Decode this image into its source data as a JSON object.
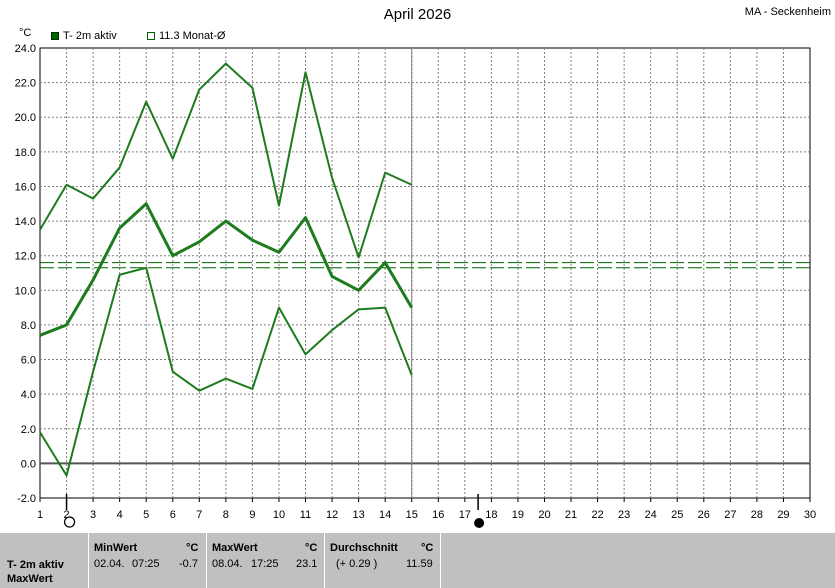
{
  "header": {
    "title": "April 2026",
    "station": "MA - Seckenheim",
    "unit": "°C"
  },
  "legend": [
    {
      "label": "T- 2m aktiv",
      "color": "#006400"
    },
    {
      "label": "11.3 Monat-Ø",
      "color": "#006400"
    }
  ],
  "chart_data": {
    "type": "line",
    "title": "April 2026",
    "ylabel": "°C",
    "xlim": [
      1,
      30
    ],
    "ylim": [
      -2,
      24
    ],
    "x_ticks": [
      1,
      2,
      3,
      4,
      5,
      6,
      7,
      8,
      9,
      10,
      11,
      12,
      13,
      14,
      15,
      16,
      17,
      18,
      19,
      20,
      21,
      22,
      23,
      24,
      25,
      26,
      27,
      28,
      29,
      30
    ],
    "y_ticks": [
      "-2.0",
      "0.0",
      "2.0",
      "4.0",
      "6.0",
      "8.0",
      "10.0",
      "12.0",
      "14.0",
      "16.0",
      "18.0",
      "20.0",
      "22.0",
      "24.0"
    ],
    "grid": true,
    "today_day": 15,
    "x": [
      1,
      2,
      3,
      4,
      5,
      6,
      7,
      8,
      9,
      10,
      11,
      12,
      13,
      14,
      15
    ],
    "series": [
      {
        "role": "max",
        "values": [
          13.5,
          16.1,
          15.3,
          17.1,
          20.9,
          17.6,
          21.6,
          23.1,
          21.7,
          14.9,
          22.6,
          16.5,
          11.9,
          16.8,
          16.1
        ]
      },
      {
        "role": "mean",
        "values": [
          7.4,
          8.0,
          10.6,
          13.6,
          15.0,
          12.0,
          12.8,
          14.0,
          12.9,
          12.2,
          14.2,
          10.8,
          10.0,
          11.6,
          9.0
        ]
      },
      {
        "role": "min",
        "values": [
          1.8,
          -0.7,
          5.3,
          10.9,
          11.3,
          5.3,
          4.2,
          4.9,
          4.3,
          9.0,
          6.3,
          7.7,
          8.9,
          9.0,
          5.1
        ]
      }
    ],
    "reference_lines": [
      {
        "label": "11.3 Monat-Ø",
        "value": 11.3
      },
      {
        "value": 11.6
      }
    ],
    "markers": [
      {
        "day": 2,
        "symbol": "open-circle"
      },
      {
        "day": 17.5,
        "symbol": "filled-circle"
      }
    ]
  },
  "stats": {
    "row_title": "T- 2m aktiv",
    "row_sub": "MaxWert",
    "min": {
      "label": "MinWert",
      "unit": "°C",
      "date": "02.04.",
      "time": "07:25",
      "value": "-0.7"
    },
    "max": {
      "label": "MaxWert",
      "unit": "°C",
      "date": "08.04.",
      "time": "17:25",
      "value": "23.1"
    },
    "avg": {
      "label": "Durchschnitt",
      "unit": "°C",
      "delta": "(+ 0.29 )",
      "value": "11.59"
    }
  }
}
